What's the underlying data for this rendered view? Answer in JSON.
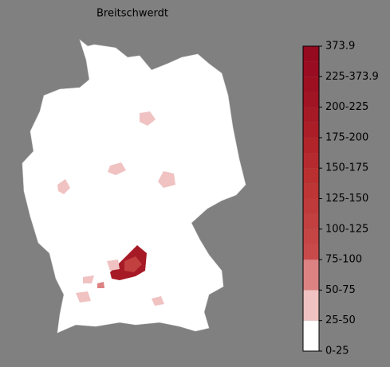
{
  "title": "Breitschwerdt",
  "colorbar": {
    "labels": [
      "0-25",
      "25-50",
      "50-75",
      "75-100",
      "100-125",
      "125-150",
      "150-175",
      "175-200",
      "200-225",
      "225-373.9",
      "373.9"
    ],
    "colors": [
      "#ffffff",
      "#f0c2c2",
      "#dc8282",
      "#c84a4a",
      "#c54545",
      "#c24040",
      "#bf3a3a",
      "#bd3535",
      "#ba3030",
      "#b52a2e",
      "#b0242a",
      "#ab1e28",
      "#a61a26",
      "#a11424",
      "#9c1022",
      "#990c22",
      "#960a20"
    ]
  }
}
